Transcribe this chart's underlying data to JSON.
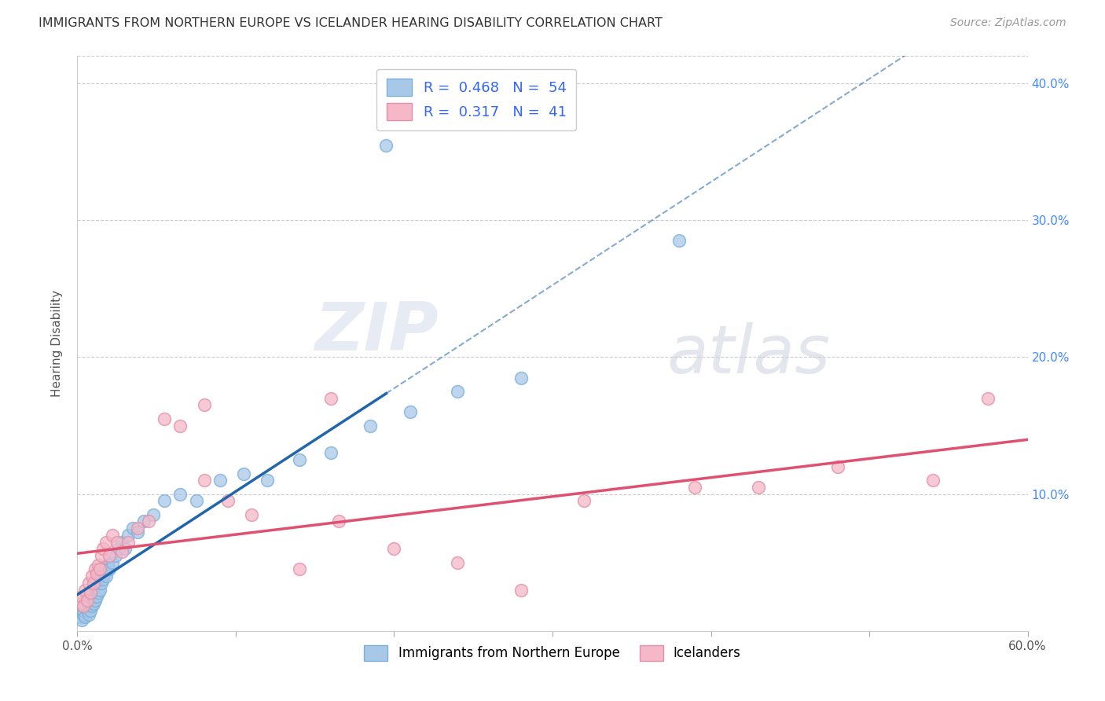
{
  "title": "IMMIGRANTS FROM NORTHERN EUROPE VS ICELANDER HEARING DISABILITY CORRELATION CHART",
  "source": "Source: ZipAtlas.com",
  "ylabel": "Hearing Disability",
  "xlim": [
    0.0,
    0.6
  ],
  "ylim": [
    0.0,
    0.42
  ],
  "xtick_vals": [
    0.0,
    0.1,
    0.2,
    0.3,
    0.4,
    0.5,
    0.6
  ],
  "xtick_labels_show": [
    "0.0%",
    "",
    "",
    "",
    "",
    "",
    "60.0%"
  ],
  "ytick_vals": [
    0.1,
    0.2,
    0.3,
    0.4
  ],
  "ytick_labels": [
    "10.0%",
    "20.0%",
    "30.0%",
    "40.0%"
  ],
  "blue_color": "#a8c8e8",
  "pink_color": "#f4b8c8",
  "blue_line_color": "#2166ac",
  "pink_line_color": "#e05070",
  "grid_color": "#cccccc",
  "background_color": "#ffffff",
  "watermark_zip": "ZIP",
  "watermark_atlas": "atlas",
  "blue_scatter_x": [
    0.002,
    0.003,
    0.004,
    0.004,
    0.005,
    0.005,
    0.006,
    0.006,
    0.007,
    0.007,
    0.008,
    0.008,
    0.009,
    0.009,
    0.01,
    0.01,
    0.011,
    0.011,
    0.012,
    0.012,
    0.013,
    0.013,
    0.014,
    0.015,
    0.015,
    0.016,
    0.017,
    0.018,
    0.019,
    0.02,
    0.022,
    0.024,
    0.026,
    0.028,
    0.03,
    0.032,
    0.035,
    0.038,
    0.042,
    0.048,
    0.055,
    0.065,
    0.075,
    0.09,
    0.105,
    0.12,
    0.14,
    0.16,
    0.185,
    0.21,
    0.24,
    0.28,
    0.38,
    0.195
  ],
  "blue_scatter_y": [
    0.01,
    0.008,
    0.012,
    0.015,
    0.01,
    0.02,
    0.015,
    0.025,
    0.012,
    0.018,
    0.015,
    0.022,
    0.018,
    0.028,
    0.02,
    0.03,
    0.022,
    0.032,
    0.025,
    0.035,
    0.028,
    0.038,
    0.03,
    0.035,
    0.045,
    0.038,
    0.042,
    0.04,
    0.048,
    0.045,
    0.05,
    0.055,
    0.06,
    0.065,
    0.06,
    0.07,
    0.075,
    0.072,
    0.08,
    0.085,
    0.095,
    0.1,
    0.095,
    0.11,
    0.115,
    0.11,
    0.125,
    0.13,
    0.15,
    0.16,
    0.175,
    0.185,
    0.285,
    0.355
  ],
  "pink_scatter_x": [
    0.002,
    0.003,
    0.004,
    0.005,
    0.006,
    0.007,
    0.008,
    0.009,
    0.01,
    0.011,
    0.012,
    0.013,
    0.014,
    0.015,
    0.016,
    0.018,
    0.02,
    0.022,
    0.025,
    0.028,
    0.032,
    0.038,
    0.045,
    0.055,
    0.065,
    0.08,
    0.095,
    0.11,
    0.14,
    0.165,
    0.2,
    0.24,
    0.28,
    0.32,
    0.39,
    0.43,
    0.48,
    0.54,
    0.575,
    0.08,
    0.16
  ],
  "pink_scatter_y": [
    0.02,
    0.025,
    0.018,
    0.03,
    0.022,
    0.035,
    0.028,
    0.04,
    0.035,
    0.045,
    0.042,
    0.048,
    0.045,
    0.055,
    0.06,
    0.065,
    0.055,
    0.07,
    0.065,
    0.058,
    0.065,
    0.075,
    0.08,
    0.155,
    0.15,
    0.165,
    0.095,
    0.085,
    0.045,
    0.08,
    0.06,
    0.05,
    0.03,
    0.095,
    0.105,
    0.105,
    0.12,
    0.11,
    0.17,
    0.11,
    0.17
  ]
}
